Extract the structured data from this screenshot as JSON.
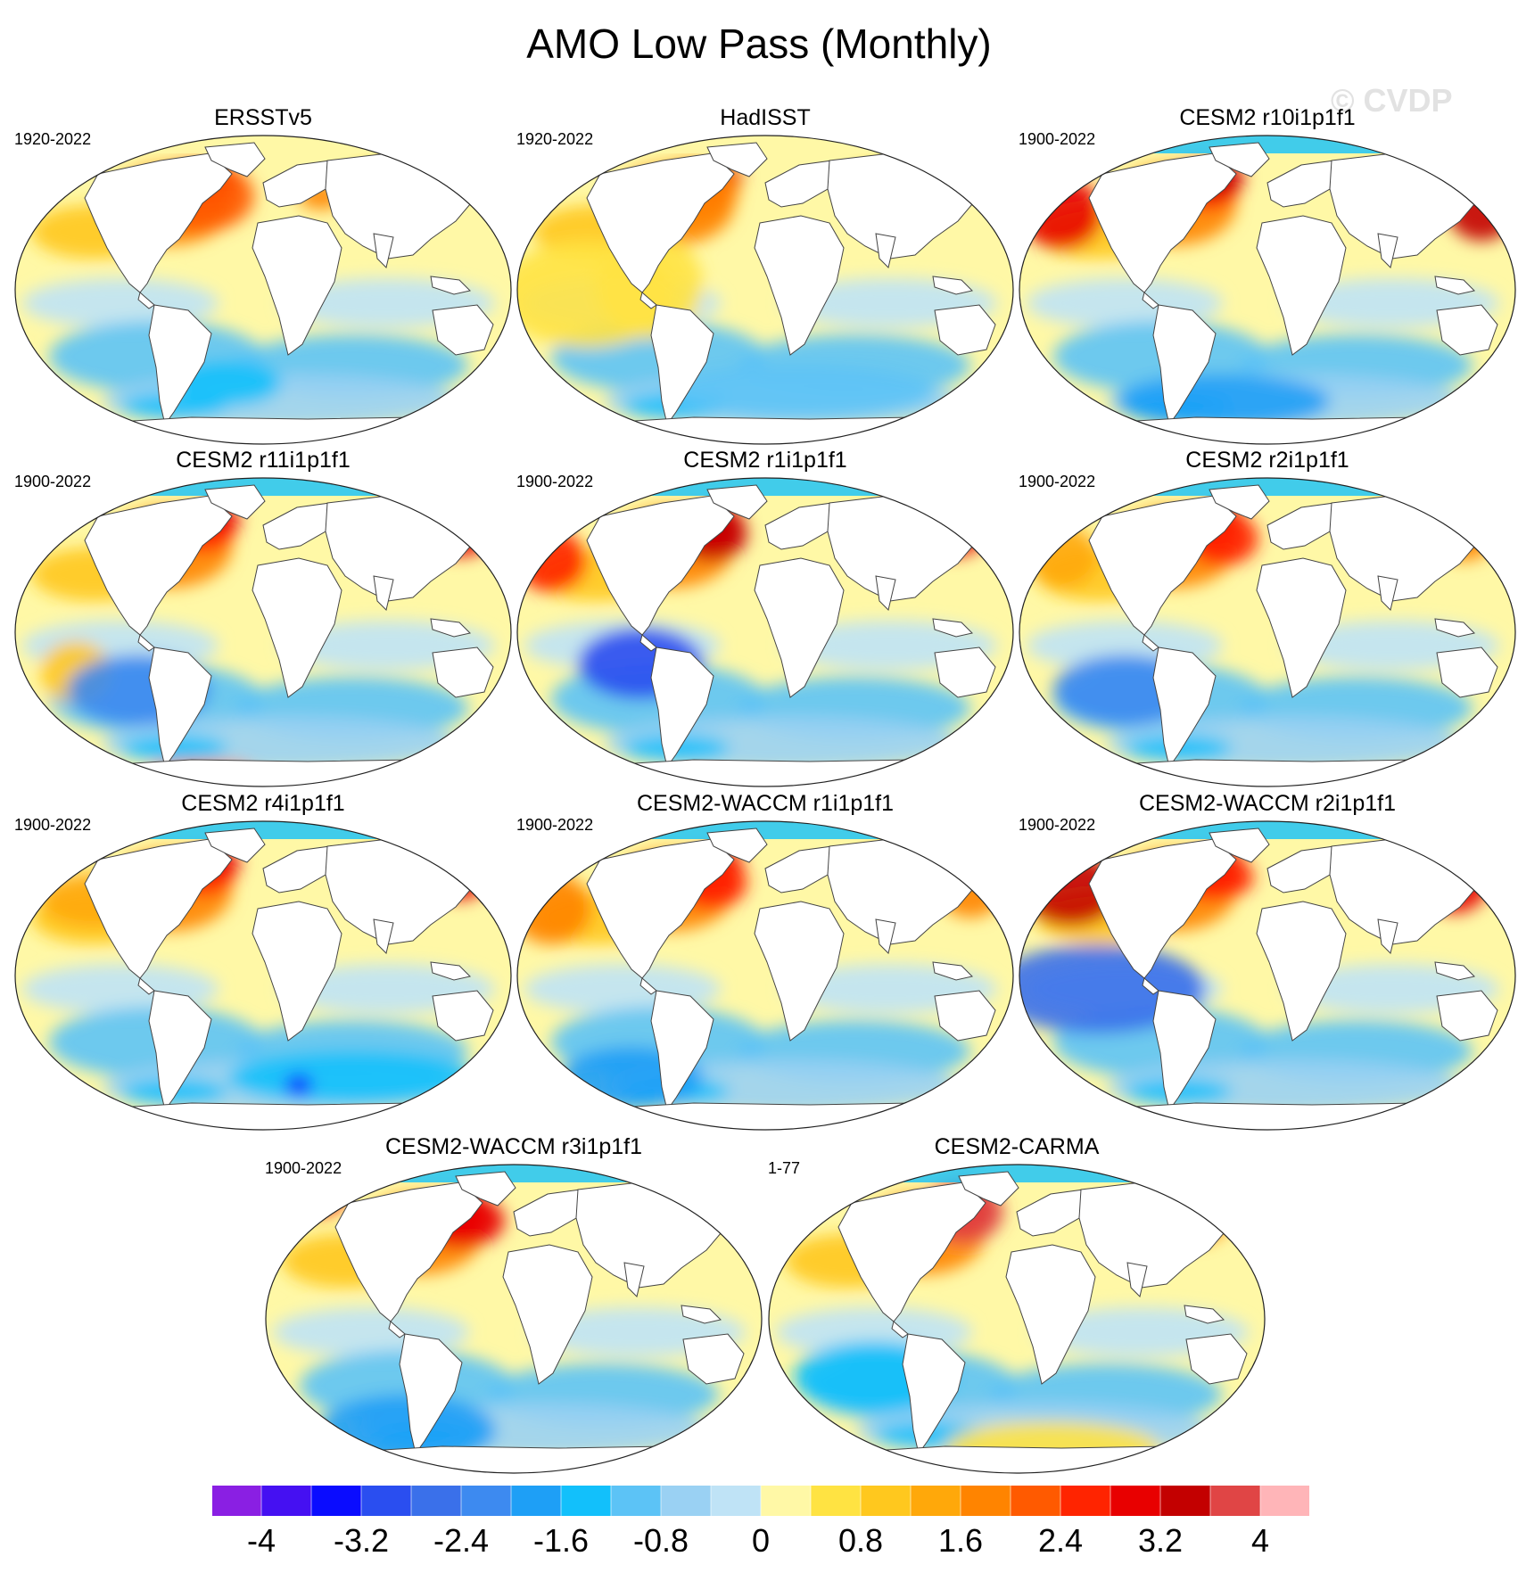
{
  "title": "AMO Low Pass (Monthly)",
  "watermark": "© CVDP",
  "palette": [
    "#8a1fe3",
    "#4510f2",
    "#0a0cff",
    "#2a4ef0",
    "#3a70ea",
    "#3d8af0",
    "#1e9ff6",
    "#12c0fb",
    "#5cc3f6",
    "#9ad1f3",
    "#bfe3f6",
    "#fff8a6",
    "#ffe342",
    "#ffc81e",
    "#ffa80a",
    "#ff8400",
    "#ff5a00",
    "#ff2400",
    "#e80000",
    "#c30000",
    "#e04545",
    "#ffb5b8"
  ],
  "colorbar_labels": [
    "-4",
    "-3.2",
    "-2.4",
    "-1.6",
    "-0.8",
    "0",
    "0.8",
    "1.6",
    "2.4",
    "3.2",
    "4"
  ],
  "panels": [
    {
      "title": "ERSSTv5",
      "years": "1920-2022"
    },
    {
      "title": "HadISST",
      "years": "1920-2022"
    },
    {
      "title": "CESM2 r10i1p1f1",
      "years": "1900-2022"
    },
    {
      "title": "CESM2 r11i1p1f1",
      "years": "1900-2022"
    },
    {
      "title": "CESM2 r1i1p1f1",
      "years": "1900-2022"
    },
    {
      "title": "CESM2 r2i1p1f1",
      "years": "1900-2022"
    },
    {
      "title": "CESM2 r4i1p1f1",
      "years": "1900-2022"
    },
    {
      "title": "CESM2-WACCM r1i1p1f1",
      "years": "1900-2022"
    },
    {
      "title": "CESM2-WACCM r2i1p1f1",
      "years": "1900-2022"
    },
    {
      "title": "CESM2-WACCM r3i1p1f1",
      "years": "1900-2022"
    },
    {
      "title": "CESM2-CARMA",
      "years": "1-77"
    }
  ]
}
